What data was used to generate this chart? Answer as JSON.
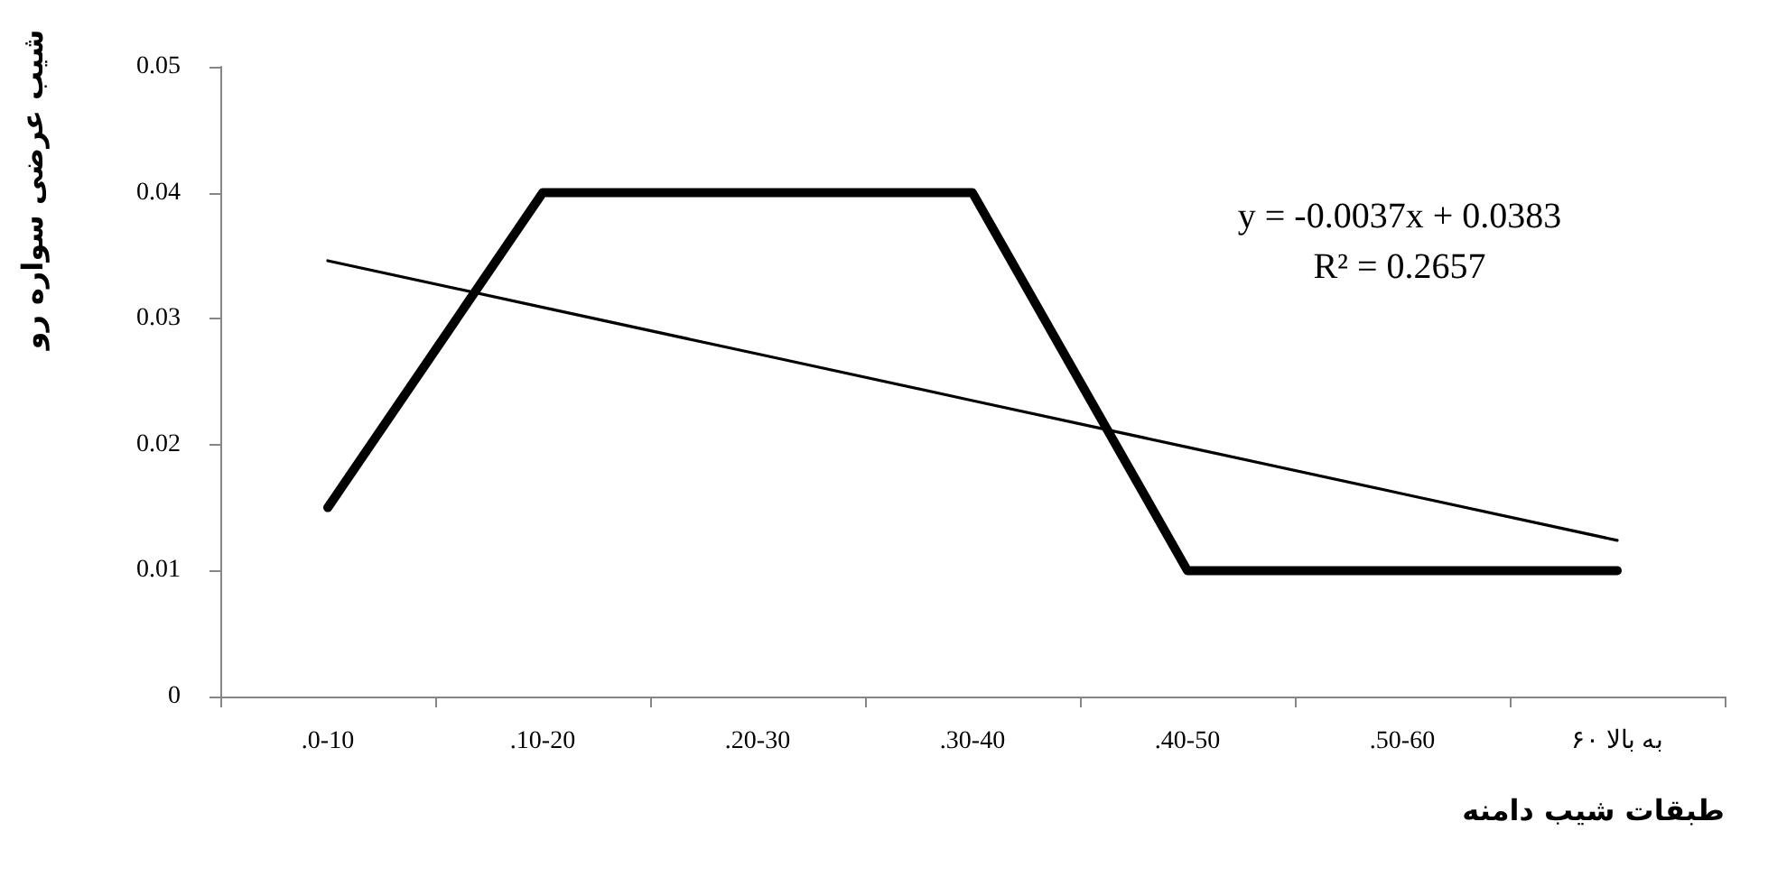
{
  "chart_data": {
    "type": "line",
    "xlabel": "طبقات شیب دامنه",
    "ylabel": "شیب عرضی سواره رو",
    "categories": [
      ".0-10",
      ".10-20",
      ".20-30",
      ".30-40",
      ".40-50",
      ".50-60",
      "۶۰ به بالا"
    ],
    "series": [
      {
        "color": "#000000",
        "values": [
          0.015,
          0.04,
          0.04,
          0.04,
          0.01,
          0.01,
          0.01
        ]
      },
      {
        "color": "#000000",
        "values": [
          0.0346,
          0.0309,
          0.0272,
          0.0235,
          0.0198,
          0.0161,
          0.0124
        ]
      }
    ],
    "ylim": [
      0,
      0.05
    ],
    "yticks": [
      0,
      0.01,
      0.02,
      0.03,
      0.04,
      0.05
    ],
    "annotations": [
      "y = -0.0037x + 0.0383",
      "R² = 0.2657"
    ],
    "grid": false,
    "marker": "none",
    "line_style": "solid"
  }
}
